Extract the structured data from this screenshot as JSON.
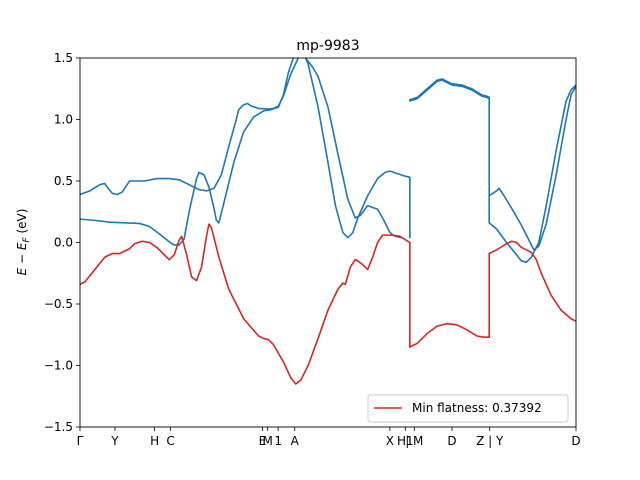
{
  "chart_data": {
    "type": "line",
    "title": "mp-9983",
    "xlabel": "",
    "ylabel_parts": [
      "E",
      " − ",
      "E",
      "F",
      " (eV)"
    ],
    "ylim": [
      -1.5,
      1.5
    ],
    "xlim": [
      0,
      1
    ],
    "grid": false,
    "legend_position": "bottom-right",
    "legend_label": "Min flatness: 0.37392",
    "yticks": [
      {
        "value": -1.5,
        "label": "−1.5"
      },
      {
        "value": -1.0,
        "label": "−1.0"
      },
      {
        "value": -0.5,
        "label": "−0.5"
      },
      {
        "value": 0.0,
        "label": "0.0"
      },
      {
        "value": 0.5,
        "label": "0.5"
      },
      {
        "value": 1.0,
        "label": "1.0"
      },
      {
        "value": 1.5,
        "label": "1.5"
      }
    ],
    "xticks": [
      {
        "x": 0.0,
        "label": "Γ"
      },
      {
        "x": 0.0705,
        "label": "Y"
      },
      {
        "x": 0.1504,
        "label": "H"
      },
      {
        "x": 0.1827,
        "label": "C"
      },
      {
        "x": 0.3677,
        "label": "E"
      },
      {
        "x": 0.3784,
        "label": "M"
      },
      {
        "x": 0.3995,
        "label": "1"
      },
      {
        "x": 0.433,
        "label": "A"
      },
      {
        "x": 0.6248,
        "label": "X"
      },
      {
        "x": 0.6558,
        "label": "H1"
      },
      {
        "x": 0.674,
        "label": "| M"
      },
      {
        "x": 0.75,
        "label": "D"
      },
      {
        "x": 0.826,
        "label": "Z | Y"
      },
      {
        "x": 1.0,
        "label": "D"
      }
    ],
    "colors": {
      "band": "#1f77b4",
      "flat": "#d62728"
    },
    "series": [
      {
        "color": "#1f77b4",
        "segments": [
          [
            [
              0,
              0.39
            ],
            [
              0.02,
              0.42
            ],
            [
              0.04,
              0.47
            ],
            [
              0.05,
              0.48
            ],
            [
              0.055,
              0.45
            ],
            [
              0.065,
              0.4
            ],
            [
              0.075,
              0.39
            ],
            [
              0.085,
              0.41
            ],
            [
              0.1,
              0.5
            ],
            [
              0.13,
              0.5
            ],
            [
              0.155,
              0.52
            ],
            [
              0.18,
              0.52
            ],
            [
              0.2,
              0.51
            ],
            [
              0.22,
              0.47
            ],
            [
              0.24,
              0.43
            ],
            [
              0.255,
              0.42
            ],
            [
              0.27,
              0.44
            ],
            [
              0.285,
              0.55
            ],
            [
              0.3,
              0.78
            ],
            [
              0.315,
              1.0
            ],
            [
              0.32,
              1.08
            ],
            [
              0.33,
              1.12
            ],
            [
              0.338,
              1.13
            ],
            [
              0.345,
              1.11
            ],
            [
              0.36,
              1.09
            ],
            [
              0.38,
              1.085
            ],
            [
              0.39,
              1.09
            ],
            [
              0.4,
              1.11
            ],
            [
              0.41,
              1.19
            ],
            [
              0.425,
              1.37
            ],
            [
              0.44,
              1.5
            ],
            [
              0.445,
              1.52
            ],
            [
              0.455,
              1.5
            ],
            [
              0.47,
              1.42
            ],
            [
              0.48,
              1.35
            ],
            [
              0.5,
              1.1
            ],
            [
              0.52,
              0.72
            ],
            [
              0.54,
              0.35
            ],
            [
              0.555,
              0.2
            ],
            [
              0.565,
              0.22
            ],
            [
              0.58,
              0.3
            ],
            [
              0.6,
              0.27
            ],
            [
              0.61,
              0.2
            ],
            [
              0.625,
              0.08
            ],
            [
              0.635,
              0.05
            ],
            [
              0.648,
              0.04
            ]
          ],
          [
            [
              0.0,
              0.19
            ],
            [
              0.03,
              0.18
            ],
            [
              0.06,
              0.165
            ],
            [
              0.09,
              0.16
            ],
            [
              0.12,
              0.155
            ],
            [
              0.14,
              0.13
            ],
            [
              0.16,
              0.07
            ],
            [
              0.185,
              -0.01
            ],
            [
              0.19,
              -0.02
            ],
            [
              0.2,
              -0.02
            ],
            [
              0.21,
              0.03
            ],
            [
              0.22,
              0.25
            ],
            [
              0.235,
              0.52
            ],
            [
              0.24,
              0.57
            ],
            [
              0.25,
              0.55
            ],
            [
              0.26,
              0.45
            ],
            [
              0.27,
              0.28
            ],
            [
              0.275,
              0.18
            ],
            [
              0.28,
              0.16
            ],
            [
              0.29,
              0.32
            ],
            [
              0.31,
              0.65
            ],
            [
              0.33,
              0.9
            ],
            [
              0.35,
              1.02
            ],
            [
              0.37,
              1.07
            ],
            [
              0.385,
              1.08
            ],
            [
              0.4,
              1.1
            ],
            [
              0.41,
              1.2
            ],
            [
              0.42,
              1.38
            ],
            [
              0.43,
              1.5
            ],
            [
              0.44,
              1.56
            ],
            [
              0.45,
              1.55
            ],
            [
              0.46,
              1.45
            ],
            [
              0.48,
              1.1
            ],
            [
              0.5,
              0.65
            ],
            [
              0.515,
              0.3
            ],
            [
              0.53,
              0.08
            ],
            [
              0.54,
              0.04
            ],
            [
              0.55,
              0.08
            ],
            [
              0.56,
              0.2
            ],
            [
              0.58,
              0.38
            ],
            [
              0.6,
              0.52
            ],
            [
              0.615,
              0.57
            ],
            [
              0.625,
              0.58
            ],
            [
              0.64,
              0.56
            ],
            [
              0.655,
              0.54
            ],
            [
              0.665,
              0.53
            ]
          ],
          [
            [
              0.665,
              0.53
            ],
            [
              0.665,
              0.04
            ]
          ],
          [
            [
              0.665,
              1.16
            ],
            [
              0.68,
              1.18
            ],
            [
              0.7,
              1.25
            ],
            [
              0.72,
              1.32
            ],
            [
              0.73,
              1.33
            ],
            [
              0.75,
              1.29
            ],
            [
              0.77,
              1.28
            ],
            [
              0.79,
              1.25
            ],
            [
              0.81,
              1.2
            ],
            [
              0.82,
              1.19
            ],
            [
              0.825,
              1.18
            ]
          ],
          [
            [
              0.665,
              1.15
            ],
            [
              0.68,
              1.17
            ],
            [
              0.7,
              1.24
            ],
            [
              0.72,
              1.31
            ],
            [
              0.73,
              1.32
            ],
            [
              0.75,
              1.28
            ],
            [
              0.77,
              1.27
            ],
            [
              0.79,
              1.24
            ],
            [
              0.81,
              1.19
            ],
            [
              0.82,
              1.18
            ],
            [
              0.825,
              1.17
            ]
          ],
          [
            [
              0.825,
              1.18
            ],
            [
              0.825,
              0.38
            ]
          ],
          [
            [
              0.825,
              0.38
            ],
            [
              0.84,
              0.42
            ],
            [
              0.845,
              0.44
            ],
            [
              0.855,
              0.38
            ],
            [
              0.87,
              0.28
            ],
            [
              0.89,
              0.14
            ],
            [
              0.905,
              0.02
            ],
            [
              0.915,
              -0.06
            ],
            [
              0.925,
              -0.03
            ],
            [
              0.94,
              0.15
            ],
            [
              0.96,
              0.55
            ],
            [
              0.98,
              1.0
            ],
            [
              0.99,
              1.2
            ],
            [
              1.0,
              1.27
            ]
          ],
          [
            [
              0.825,
              0.16
            ],
            [
              0.84,
              0.11
            ],
            [
              0.86,
              0.0
            ],
            [
              0.88,
              -0.1
            ],
            [
              0.89,
              -0.15
            ],
            [
              0.9,
              -0.16
            ],
            [
              0.91,
              -0.12
            ],
            [
              0.925,
              0.0
            ],
            [
              0.94,
              0.3
            ],
            [
              0.96,
              0.75
            ],
            [
              0.98,
              1.15
            ],
            [
              0.99,
              1.24
            ],
            [
              1.0,
              1.28
            ]
          ],
          [
            [
              0.825,
              0.16
            ],
            [
              0.825,
              0.38
            ]
          ]
        ]
      },
      {
        "name": "Min flatness: 0.37392",
        "color": "#d62728",
        "segments": [
          [
            [
              0,
              -0.34
            ],
            [
              0.01,
              -0.32
            ],
            [
              0.03,
              -0.22
            ],
            [
              0.05,
              -0.12
            ],
            [
              0.065,
              -0.09
            ],
            [
              0.08,
              -0.09
            ],
            [
              0.1,
              -0.05
            ],
            [
              0.11,
              -0.01
            ],
            [
              0.125,
              0.01
            ],
            [
              0.14,
              0.0
            ],
            [
              0.155,
              -0.04
            ],
            [
              0.17,
              -0.1
            ],
            [
              0.18,
              -0.14
            ],
            [
              0.19,
              -0.1
            ],
            [
              0.2,
              0.02
            ],
            [
              0.205,
              0.05
            ],
            [
              0.215,
              -0.1
            ],
            [
              0.225,
              -0.28
            ],
            [
              0.235,
              -0.31
            ],
            [
              0.245,
              -0.2
            ],
            [
              0.255,
              0.05
            ],
            [
              0.26,
              0.15
            ],
            [
              0.265,
              0.12
            ],
            [
              0.28,
              -0.12
            ],
            [
              0.3,
              -0.38
            ],
            [
              0.33,
              -0.62
            ],
            [
              0.36,
              -0.76
            ],
            [
              0.37,
              -0.78
            ],
            [
              0.38,
              -0.79
            ],
            [
              0.39,
              -0.83
            ],
            [
              0.41,
              -0.97
            ],
            [
              0.425,
              -1.1
            ],
            [
              0.435,
              -1.15
            ],
            [
              0.445,
              -1.12
            ],
            [
              0.46,
              -1.0
            ],
            [
              0.48,
              -0.78
            ],
            [
              0.5,
              -0.55
            ],
            [
              0.52,
              -0.38
            ],
            [
              0.53,
              -0.33
            ],
            [
              0.535,
              -0.34
            ],
            [
              0.545,
              -0.2
            ],
            [
              0.555,
              -0.14
            ],
            [
              0.56,
              -0.15
            ],
            [
              0.57,
              -0.18
            ],
            [
              0.58,
              -0.22
            ],
            [
              0.59,
              -0.12
            ],
            [
              0.6,
              0.0
            ],
            [
              0.61,
              0.06
            ],
            [
              0.63,
              0.06
            ],
            [
              0.645,
              0.05
            ],
            [
              0.665,
              0.0
            ]
          ],
          [
            [
              0.665,
              0.0
            ],
            [
              0.665,
              -0.85
            ]
          ],
          [
            [
              0.665,
              -0.85
            ],
            [
              0.68,
              -0.82
            ],
            [
              0.7,
              -0.74
            ],
            [
              0.72,
              -0.68
            ],
            [
              0.74,
              -0.66
            ],
            [
              0.76,
              -0.67
            ],
            [
              0.78,
              -0.71
            ],
            [
              0.8,
              -0.76
            ],
            [
              0.815,
              -0.77
            ],
            [
              0.825,
              -0.77
            ]
          ],
          [
            [
              0.825,
              -0.77
            ],
            [
              0.825,
              -0.09
            ]
          ],
          [
            [
              0.825,
              -0.09
            ],
            [
              0.84,
              -0.06
            ],
            [
              0.86,
              -0.01
            ],
            [
              0.87,
              0.01
            ],
            [
              0.88,
              0.0
            ],
            [
              0.89,
              -0.04
            ],
            [
              0.91,
              -0.08
            ],
            [
              0.92,
              -0.14
            ],
            [
              0.93,
              -0.25
            ],
            [
              0.95,
              -0.43
            ],
            [
              0.97,
              -0.55
            ],
            [
              0.99,
              -0.62
            ],
            [
              1.0,
              -0.64
            ]
          ]
        ]
      }
    ]
  }
}
